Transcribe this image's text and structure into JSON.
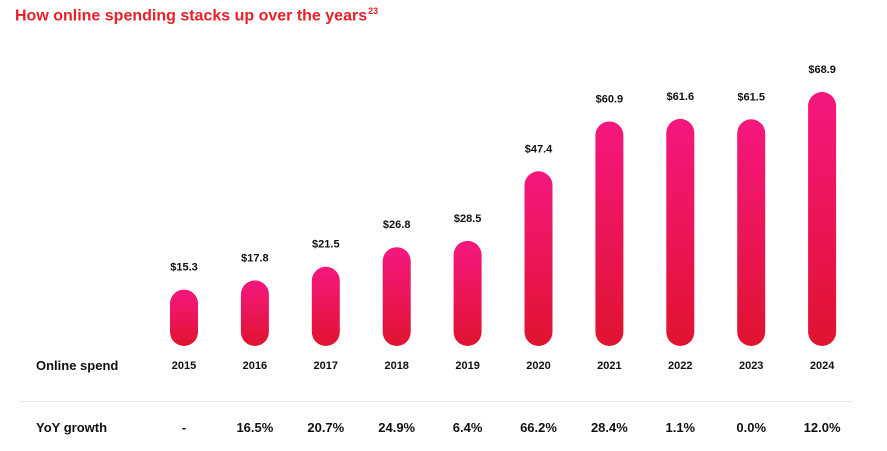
{
  "title": "How online spending stacks up over the years",
  "title_footnote": "23",
  "row_labels": {
    "spend": "Online spend",
    "growth": "YoY growth"
  },
  "chart_data": {
    "type": "bar",
    "title": "How online spending stacks up over the years",
    "categories": [
      "2015",
      "2016",
      "2017",
      "2018",
      "2019",
      "2020",
      "2021",
      "2022",
      "2023",
      "2024"
    ],
    "values": [
      15.3,
      17.8,
      21.5,
      26.8,
      28.5,
      47.4,
      60.9,
      61.6,
      61.5,
      68.9
    ],
    "value_labels": [
      "$15.3",
      "$17.8",
      "$21.5",
      "$26.8",
      "$28.5",
      "$47.4",
      "$60.9",
      "$61.6",
      "$61.5",
      "$68.9"
    ],
    "yoy_growth": [
      "-",
      "16.5%",
      "20.7%",
      "24.9%",
      "6.4%",
      "66.2%",
      "28.4%",
      "1.1%",
      "0.0%",
      "12.0%"
    ],
    "xlabel": "Online spend",
    "ylabel": "",
    "grid": false,
    "colors": {
      "bar_top": "#f5177f",
      "bar_bottom": "#e0142f",
      "title": "#e8202a"
    }
  }
}
